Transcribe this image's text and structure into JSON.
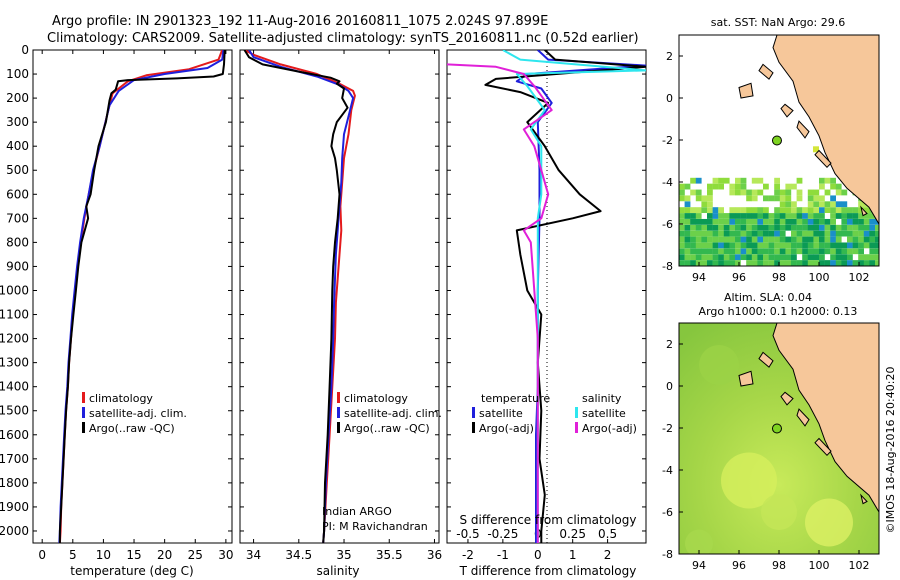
{
  "header": {
    "line1": "Argo profile: IN 2901323_192 11-Aug-2016 20160811_1075 2.024S 97.899E",
    "line2": "Climatology: CARS2009. Satellite-adjusted climatology: synTS_20160811.nc (0.52d earlier)"
  },
  "credit": "©IMOS 18-Aug-2016 20:40:20",
  "colors": {
    "climatology": "#e41a1c",
    "satellite": "#1f1fdc",
    "argo": "#000000",
    "cyan": "#2ee6ee",
    "magenta": "#e020d8",
    "land": "#f6c79a",
    "sea_light": "#b6e85a",
    "sea_dark": "#0b9a55"
  },
  "chart_data": [
    {
      "type": "line",
      "panel": "temperature",
      "xlabel": "temperature (deg C)",
      "xlim": [
        -1.5,
        31
      ],
      "xticks": [
        0,
        5,
        10,
        15,
        20,
        25,
        30
      ],
      "ylim": [
        2050,
        0
      ],
      "yticks": [
        0,
        100,
        200,
        300,
        400,
        500,
        600,
        700,
        800,
        900,
        1000,
        1100,
        1200,
        1300,
        1400,
        1500,
        1600,
        1700,
        1800,
        1900,
        2000
      ],
      "legend": [
        "climatology",
        "satellite-adj. clim.",
        "Argo(..raw -QC)"
      ],
      "series": [
        {
          "name": "climatology",
          "color_key": "climatology",
          "points": [
            [
              29.4,
              0
            ],
            [
              28.8,
              40
            ],
            [
              24,
              80
            ],
            [
              17,
              105
            ],
            [
              14,
              130
            ],
            [
              11.5,
              180
            ],
            [
              10.8,
              250
            ],
            [
              9.4,
              400
            ],
            [
              8.4,
              500
            ],
            [
              7.6,
              600
            ],
            [
              6.9,
              700
            ],
            [
              6.3,
              800
            ],
            [
              5.8,
              900
            ],
            [
              5.4,
              1000
            ],
            [
              5.0,
              1100
            ],
            [
              4.7,
              1200
            ],
            [
              4.4,
              1300
            ],
            [
              4.2,
              1400
            ],
            [
              3.9,
              1500
            ],
            [
              3.7,
              1600
            ],
            [
              3.5,
              1700
            ],
            [
              3.3,
              1800
            ],
            [
              3.1,
              1900
            ],
            [
              3.0,
              2000
            ],
            [
              2.9,
              2050
            ]
          ]
        },
        {
          "name": "satellite-adj. clim.",
          "color_key": "satellite",
          "points": [
            [
              29.6,
              0
            ],
            [
              29.4,
              40
            ],
            [
              27,
              75
            ],
            [
              20,
              100
            ],
            [
              15,
              125
            ],
            [
              12.5,
              170
            ],
            [
              11,
              230
            ],
            [
              9.4,
              400
            ],
            [
              8.3,
              500
            ],
            [
              7.6,
              600
            ],
            [
              6.8,
              700
            ],
            [
              6.2,
              800
            ],
            [
              5.7,
              900
            ],
            [
              5.3,
              1000
            ],
            [
              4.9,
              1100
            ],
            [
              4.6,
              1200
            ],
            [
              4.3,
              1300
            ],
            [
              4.1,
              1400
            ],
            [
              3.8,
              1500
            ],
            [
              3.6,
              1600
            ],
            [
              3.4,
              1700
            ],
            [
              3.2,
              1800
            ],
            [
              3.0,
              1900
            ],
            [
              2.9,
              2000
            ],
            [
              2.8,
              2050
            ]
          ]
        },
        {
          "name": "Argo(..raw -QC)",
          "color_key": "argo",
          "points": [
            [
              29.8,
              0
            ],
            [
              29.7,
              60
            ],
            [
              29.5,
              100
            ],
            [
              28,
              110
            ],
            [
              22,
              118
            ],
            [
              14,
              125
            ],
            [
              12.4,
              130
            ],
            [
              12,
              165
            ],
            [
              11.3,
              180
            ],
            [
              11,
              210
            ],
            [
              10.4,
              300
            ],
            [
              9.2,
              400
            ],
            [
              8.5,
              500
            ],
            [
              7.9,
              600
            ],
            [
              7.2,
              650
            ],
            [
              7.5,
              700
            ],
            [
              6.4,
              800
            ],
            [
              5.9,
              900
            ],
            [
              5.5,
              1000
            ],
            [
              5.1,
              1100
            ],
            [
              4.7,
              1200
            ],
            [
              4.4,
              1300
            ],
            [
              4.2,
              1400
            ],
            [
              3.9,
              1500
            ],
            [
              3.7,
              1600
            ],
            [
              3.5,
              1700
            ],
            [
              3.3,
              1800
            ],
            [
              3.1,
              1900
            ],
            [
              2.9,
              2000
            ],
            [
              2.9,
              2050
            ]
          ]
        }
      ]
    },
    {
      "type": "line",
      "panel": "salinity",
      "xlabel": "salinity",
      "xlim": [
        33.85,
        36.05
      ],
      "xticks": [
        34,
        34.5,
        35,
        35.5,
        36
      ],
      "ylim": [
        2050,
        0
      ],
      "legend": [
        "climatology",
        "satellite-adj. clim.",
        "Argo(..raw -QC)"
      ],
      "annotations": [
        "Indian ARGO",
        "PI: M Ravichandran"
      ],
      "series": [
        {
          "name": "climatology",
          "color_key": "climatology",
          "points": [
            [
              33.9,
              0
            ],
            [
              34.0,
              20
            ],
            [
              34.3,
              60
            ],
            [
              34.7,
              100
            ],
            [
              34.95,
              140
            ],
            [
              35.1,
              170
            ],
            [
              35.12,
              190
            ],
            [
              35.08,
              250
            ],
            [
              35.05,
              350
            ],
            [
              35.0,
              450
            ],
            [
              34.98,
              550
            ],
            [
              34.96,
              650
            ],
            [
              34.97,
              750
            ],
            [
              34.95,
              850
            ],
            [
              34.93,
              950
            ],
            [
              34.91,
              1050
            ],
            [
              34.9,
              1200
            ],
            [
              34.87,
              1400
            ],
            [
              34.84,
              1600
            ],
            [
              34.81,
              1800
            ],
            [
              34.78,
              2000
            ],
            [
              34.77,
              2050
            ]
          ]
        },
        {
          "name": "satellite-adj. clim.",
          "color_key": "satellite",
          "points": [
            [
              33.95,
              0
            ],
            [
              34.0,
              30
            ],
            [
              34.3,
              70
            ],
            [
              34.7,
              110
            ],
            [
              34.95,
              145
            ],
            [
              35.05,
              170
            ],
            [
              35.1,
              200
            ],
            [
              35.06,
              260
            ],
            [
              35.0,
              350
            ],
            [
              34.98,
              450
            ],
            [
              34.97,
              550
            ],
            [
              34.95,
              650
            ],
            [
              34.93,
              750
            ],
            [
              34.91,
              850
            ],
            [
              34.9,
              950
            ],
            [
              34.89,
              1050
            ],
            [
              34.88,
              1200
            ],
            [
              34.86,
              1400
            ],
            [
              34.83,
              1600
            ],
            [
              34.8,
              1800
            ],
            [
              34.78,
              2000
            ],
            [
              34.77,
              2050
            ]
          ]
        },
        {
          "name": "Argo(..raw -QC)",
          "color_key": "argo",
          "points": [
            [
              33.9,
              0
            ],
            [
              33.95,
              30
            ],
            [
              34.1,
              60
            ],
            [
              34.5,
              90
            ],
            [
              34.85,
              115
            ],
            [
              34.95,
              130
            ],
            [
              34.92,
              140
            ],
            [
              35.0,
              160
            ],
            [
              34.98,
              200
            ],
            [
              35.04,
              240
            ],
            [
              34.92,
              300
            ],
            [
              34.88,
              350
            ],
            [
              34.86,
              400
            ],
            [
              34.9,
              450
            ],
            [
              34.92,
              500
            ],
            [
              34.95,
              600
            ],
            [
              34.93,
              700
            ],
            [
              34.9,
              800
            ],
            [
              34.88,
              900
            ],
            [
              34.87,
              1000
            ],
            [
              34.86,
              1200
            ],
            [
              34.84,
              1400
            ],
            [
              34.82,
              1600
            ],
            [
              34.79,
              1800
            ],
            [
              34.78,
              2000
            ],
            [
              34.77,
              2050
            ]
          ]
        }
      ]
    },
    {
      "type": "line",
      "panel": "difference",
      "xlabel": "T difference from climatology",
      "xlabel_top": "S difference from climatology",
      "xlim": [
        -2.6,
        3.1
      ],
      "xticks": [
        -2,
        -1,
        0,
        1,
        2
      ],
      "xticks_top": [
        "-0.5",
        "-0.25",
        "0",
        "0.25",
        "0.5"
      ],
      "ylim": [
        2050,
        0
      ],
      "legend_left_title": "temperature",
      "legend_right_title": "salinity",
      "legend": [
        "satellite",
        "Argo(-adj)",
        "satellite",
        "Argo(-adj)"
      ],
      "series": [
        {
          "name": "temperature satellite",
          "color_key": "satellite",
          "points": [
            [
              0,
              0
            ],
            [
              0.3,
              40
            ],
            [
              3.1,
              65
            ],
            [
              -0.3,
              100
            ],
            [
              -0.6,
              130
            ],
            [
              0.1,
              160
            ],
            [
              0.4,
              220
            ],
            [
              0,
              300
            ],
            [
              0.05,
              500
            ],
            [
              0.05,
              700
            ],
            [
              0,
              1000
            ],
            [
              0,
              1400
            ],
            [
              -0.05,
              1600
            ],
            [
              -0.05,
              2050
            ]
          ]
        },
        {
          "name": "temperature Argo(-adj)",
          "color_key": "argo",
          "points": [
            [
              0.2,
              0
            ],
            [
              0.5,
              40
            ],
            [
              3.1,
              70
            ],
            [
              -1.2,
              120
            ],
            [
              -1.5,
              145
            ],
            [
              -0.5,
              175
            ],
            [
              0.3,
              220
            ],
            [
              -0.3,
              300
            ],
            [
              0.2,
              400
            ],
            [
              0.6,
              500
            ],
            [
              1.2,
              600
            ],
            [
              1.8,
              670
            ],
            [
              1.0,
              700
            ],
            [
              -0.6,
              750
            ],
            [
              -0.5,
              850
            ],
            [
              -0.3,
              1000
            ],
            [
              0.1,
              1100
            ],
            [
              0.0,
              1300
            ],
            [
              0.1,
              1500
            ],
            [
              0.05,
              1700
            ],
            [
              0.2,
              1850
            ],
            [
              0.1,
              2000
            ],
            [
              0.1,
              2050
            ]
          ]
        },
        {
          "name": "salinity satellite",
          "color_key": "cyan",
          "points": [
            [
              -1.0,
              0
            ],
            [
              -0.5,
              40
            ],
            [
              3.1,
              85
            ],
            [
              -0.6,
              100
            ],
            [
              -0.3,
              150
            ],
            [
              0.2,
              250
            ],
            [
              -0.2,
              330
            ],
            [
              0.1,
              400
            ],
            [
              0.1,
              600
            ],
            [
              0,
              700
            ],
            [
              0,
              1000
            ],
            [
              0,
              1500
            ],
            [
              0,
              2050
            ]
          ]
        },
        {
          "name": "salinity Argo(-adj)",
          "color_key": "magenta",
          "points": [
            [
              -2.6,
              60
            ],
            [
              -1.2,
              70
            ],
            [
              -0.4,
              100
            ],
            [
              -0.1,
              150
            ],
            [
              0.4,
              250
            ],
            [
              -0.4,
              330
            ],
            [
              -0.1,
              400
            ],
            [
              0.1,
              500
            ],
            [
              0.3,
              600
            ],
            [
              0.1,
              700
            ],
            [
              -0.4,
              750
            ],
            [
              -0.2,
              800
            ],
            [
              -0.1,
              1000
            ],
            [
              0,
              1200
            ],
            [
              0,
              2050
            ]
          ]
        }
      ]
    },
    {
      "type": "heatmap",
      "panel": "sst-map",
      "title": "sat. SST: NaN Argo: 29.6",
      "xlim": [
        93,
        103
      ],
      "ylim": [
        -8,
        3
      ],
      "xticks": [
        94,
        96,
        98,
        100,
        102
      ],
      "yticks": [
        2,
        0,
        -2,
        -4,
        -6,
        -8
      ],
      "float_position": [
        97.899,
        -2.024
      ]
    },
    {
      "type": "heatmap",
      "panel": "sla-map",
      "title": "Altim. SLA: 0.04",
      "subtitle": "Argo h1000: 0.1 h2000: 0.13",
      "xlim": [
        93,
        103
      ],
      "ylim": [
        -8,
        3
      ],
      "xticks": [
        94,
        96,
        98,
        100,
        102
      ],
      "yticks": [
        2,
        0,
        -2,
        -4,
        -6,
        -8
      ],
      "float_position": [
        97.899,
        -2.024
      ]
    }
  ]
}
